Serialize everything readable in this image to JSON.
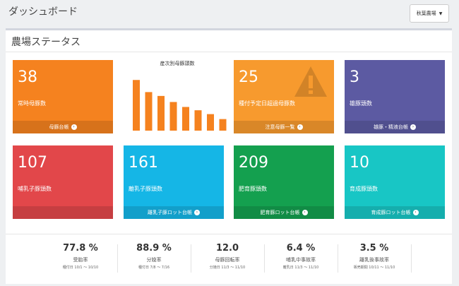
{
  "header": {
    "title": "ダッシュボード"
  },
  "farm_select": {
    "value": "秋葉農場"
  },
  "panel": {
    "title": "農場ステータス"
  },
  "chart": {
    "title": "産次別母豚頭数",
    "color": "#f5821f"
  },
  "chart_data": {
    "type": "bar",
    "title": "産次別母豚頭数",
    "values": [
      9.2,
      7,
      6.3,
      5.2,
      4.3,
      3.7,
      3,
      2.1
    ],
    "ylim": [
      0,
      10
    ]
  },
  "tiles": [
    {
      "value": "38",
      "label": "常時母豚数",
      "footer": "母豚台帳",
      "color": "#f5821f"
    },
    {
      "value": "25",
      "label": "種付予定日超過母豚数",
      "footer": "注意母豚一覧",
      "color": "#f79a2e"
    },
    {
      "value": "3",
      "label": "雄豚頭数",
      "footer": "雄豚・精液台帳",
      "color": "#5c5aa2"
    },
    {
      "value": "107",
      "label": "哺乳子豚頭数",
      "footer": "",
      "color": "#e2474a"
    },
    {
      "value": "161",
      "label": "離乳子豚頭数",
      "footer": "離乳子豚ロット台帳",
      "color": "#15b6e6"
    },
    {
      "value": "209",
      "label": "肥育豚頭数",
      "footer": "肥育豚ロット台帳",
      "color": "#14a04f"
    },
    {
      "value": "10",
      "label": "育成豚頭数",
      "footer": "育成豚ロット台帳",
      "color": "#18c6c5"
    }
  ],
  "stats": [
    {
      "value": "77.8 %",
      "name": "受胎率",
      "date": "種付日 10/1 ～ 10/10"
    },
    {
      "value": "88.9 %",
      "name": "分娩率",
      "date": "種付日 7/8 ～ 7/16"
    },
    {
      "value": "12.0",
      "name": "母豚回転率",
      "date": "分娩日 11/3 ～ 11/10"
    },
    {
      "value": "6.4 %",
      "name": "哺乳中事故率",
      "date": "離乳日 11/3 ～ 11/10"
    },
    {
      "value": "3.5 %",
      "name": "離乳後事故率",
      "date": "販売期間 10/11 ～ 11/10"
    }
  ]
}
